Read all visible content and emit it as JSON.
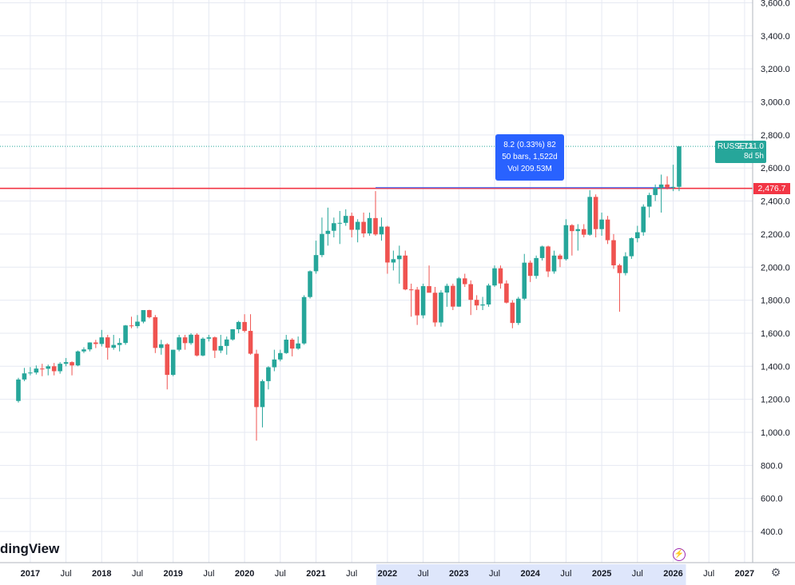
{
  "chart_data": {
    "type": "candlestick",
    "symbol": "RUSSELL",
    "last_price": "2,731.0",
    "bar_countdown": "8d 5h",
    "horizontal_level": "2,476.7",
    "measure": {
      "line1": "8.2 (0.33%) 82",
      "line2": "50 bars, 1,522d",
      "line3": "Vol 209.53M"
    },
    "y_ticks": [
      "400.0",
      "600.0",
      "800.0",
      "1,000.0",
      "1,200.0",
      "1,400.0",
      "1,600.0",
      "1,800.0",
      "2,000.0",
      "2,200.0",
      "2,400.0",
      "2,600.0",
      "2,800.0",
      "3,000.0",
      "3,200.0",
      "3,400.0",
      "3,600.0"
    ],
    "x_ticks": [
      "2017",
      "Jul",
      "2018",
      "Jul",
      "2019",
      "Jul",
      "2020",
      "Jul",
      "2021",
      "Jul",
      "2022",
      "Jul",
      "2023",
      "Jul",
      "2024",
      "Jul",
      "2025",
      "Jul",
      "2026",
      "Jul",
      "2027"
    ],
    "x_ticks_highlight": [
      "2022",
      "Jul",
      "2023",
      "Jul",
      "2024",
      "Jul",
      "2025",
      "Jul",
      "2026"
    ],
    "candles": [
      {
        "date": "2016-11",
        "o": 1190,
        "h": 1330,
        "l": 1180,
        "c": 1320
      },
      {
        "date": "2016-12",
        "o": 1320,
        "h": 1390,
        "l": 1310,
        "c": 1357
      },
      {
        "date": "2017-01",
        "o": 1357,
        "h": 1395,
        "l": 1345,
        "c": 1362
      },
      {
        "date": "2017-02",
        "o": 1362,
        "h": 1405,
        "l": 1350,
        "c": 1386
      },
      {
        "date": "2017-03",
        "o": 1386,
        "h": 1415,
        "l": 1340,
        "c": 1385
      },
      {
        "date": "2017-04",
        "o": 1385,
        "h": 1410,
        "l": 1345,
        "c": 1400
      },
      {
        "date": "2017-05",
        "o": 1400,
        "h": 1420,
        "l": 1345,
        "c": 1370
      },
      {
        "date": "2017-06",
        "o": 1370,
        "h": 1425,
        "l": 1355,
        "c": 1415
      },
      {
        "date": "2017-07",
        "o": 1415,
        "h": 1450,
        "l": 1400,
        "c": 1425
      },
      {
        "date": "2017-08",
        "o": 1425,
        "h": 1430,
        "l": 1345,
        "c": 1405
      },
      {
        "date": "2017-09",
        "o": 1405,
        "h": 1495,
        "l": 1400,
        "c": 1490
      },
      {
        "date": "2017-10",
        "o": 1490,
        "h": 1515,
        "l": 1480,
        "c": 1502
      },
      {
        "date": "2017-11",
        "o": 1502,
        "h": 1545,
        "l": 1490,
        "c": 1544
      },
      {
        "date": "2017-12",
        "o": 1544,
        "h": 1560,
        "l": 1510,
        "c": 1535
      },
      {
        "date": "2018-01",
        "o": 1535,
        "h": 1620,
        "l": 1520,
        "c": 1575
      },
      {
        "date": "2018-02",
        "o": 1575,
        "h": 1590,
        "l": 1440,
        "c": 1512
      },
      {
        "date": "2018-03",
        "o": 1512,
        "h": 1590,
        "l": 1500,
        "c": 1529
      },
      {
        "date": "2018-04",
        "o": 1529,
        "h": 1570,
        "l": 1490,
        "c": 1541
      },
      {
        "date": "2018-05",
        "o": 1541,
        "h": 1650,
        "l": 1530,
        "c": 1647
      },
      {
        "date": "2018-06",
        "o": 1647,
        "h": 1700,
        "l": 1630,
        "c": 1643
      },
      {
        "date": "2018-07",
        "o": 1643,
        "h": 1710,
        "l": 1630,
        "c": 1670
      },
      {
        "date": "2018-08",
        "o": 1670,
        "h": 1740,
        "l": 1660,
        "c": 1740
      },
      {
        "date": "2018-09",
        "o": 1740,
        "h": 1742,
        "l": 1690,
        "c": 1697
      },
      {
        "date": "2018-10",
        "o": 1697,
        "h": 1710,
        "l": 1480,
        "c": 1511
      },
      {
        "date": "2018-11",
        "o": 1511,
        "h": 1560,
        "l": 1470,
        "c": 1533
      },
      {
        "date": "2018-12",
        "o": 1533,
        "h": 1540,
        "l": 1260,
        "c": 1348
      },
      {
        "date": "2019-01",
        "o": 1348,
        "h": 1500,
        "l": 1340,
        "c": 1500
      },
      {
        "date": "2019-02",
        "o": 1500,
        "h": 1590,
        "l": 1490,
        "c": 1575
      },
      {
        "date": "2019-03",
        "o": 1575,
        "h": 1590,
        "l": 1500,
        "c": 1540
      },
      {
        "date": "2019-04",
        "o": 1540,
        "h": 1600,
        "l": 1530,
        "c": 1591
      },
      {
        "date": "2019-05",
        "o": 1591,
        "h": 1600,
        "l": 1460,
        "c": 1465
      },
      {
        "date": "2019-06",
        "o": 1465,
        "h": 1575,
        "l": 1460,
        "c": 1567
      },
      {
        "date": "2019-07",
        "o": 1567,
        "h": 1590,
        "l": 1550,
        "c": 1575
      },
      {
        "date": "2019-08",
        "o": 1575,
        "h": 1580,
        "l": 1450,
        "c": 1495
      },
      {
        "date": "2019-09",
        "o": 1495,
        "h": 1590,
        "l": 1480,
        "c": 1523
      },
      {
        "date": "2019-10",
        "o": 1523,
        "h": 1580,
        "l": 1470,
        "c": 1562
      },
      {
        "date": "2019-11",
        "o": 1562,
        "h": 1625,
        "l": 1555,
        "c": 1624
      },
      {
        "date": "2019-12",
        "o": 1624,
        "h": 1675,
        "l": 1600,
        "c": 1668
      },
      {
        "date": "2020-01",
        "o": 1668,
        "h": 1715,
        "l": 1605,
        "c": 1614
      },
      {
        "date": "2020-02",
        "o": 1614,
        "h": 1715,
        "l": 1470,
        "c": 1476
      },
      {
        "date": "2020-03",
        "o": 1476,
        "h": 1500,
        "l": 950,
        "c": 1153
      },
      {
        "date": "2020-04",
        "o": 1153,
        "h": 1320,
        "l": 1030,
        "c": 1310
      },
      {
        "date": "2020-05",
        "o": 1310,
        "h": 1400,
        "l": 1260,
        "c": 1394
      },
      {
        "date": "2020-06",
        "o": 1394,
        "h": 1500,
        "l": 1370,
        "c": 1441
      },
      {
        "date": "2020-07",
        "o": 1441,
        "h": 1500,
        "l": 1430,
        "c": 1480
      },
      {
        "date": "2020-08",
        "o": 1480,
        "h": 1590,
        "l": 1475,
        "c": 1561
      },
      {
        "date": "2020-09",
        "o": 1561,
        "h": 1570,
        "l": 1460,
        "c": 1507
      },
      {
        "date": "2020-10",
        "o": 1507,
        "h": 1580,
        "l": 1500,
        "c": 1538
      },
      {
        "date": "2020-11",
        "o": 1538,
        "h": 1830,
        "l": 1530,
        "c": 1819
      },
      {
        "date": "2020-12",
        "o": 1819,
        "h": 1980,
        "l": 1810,
        "c": 1975
      },
      {
        "date": "2021-01",
        "o": 1975,
        "h": 2160,
        "l": 1960,
        "c": 2073
      },
      {
        "date": "2021-02",
        "o": 2073,
        "h": 2300,
        "l": 2060,
        "c": 2201
      },
      {
        "date": "2021-03",
        "o": 2201,
        "h": 2360,
        "l": 2130,
        "c": 2220
      },
      {
        "date": "2021-04",
        "o": 2220,
        "h": 2300,
        "l": 2180,
        "c": 2266
      },
      {
        "date": "2021-05",
        "o": 2266,
        "h": 2340,
        "l": 2140,
        "c": 2268
      },
      {
        "date": "2021-06",
        "o": 2268,
        "h": 2350,
        "l": 2250,
        "c": 2310
      },
      {
        "date": "2021-07",
        "o": 2310,
        "h": 2330,
        "l": 2180,
        "c": 2226
      },
      {
        "date": "2021-08",
        "o": 2226,
        "h": 2290,
        "l": 2150,
        "c": 2274
      },
      {
        "date": "2021-09",
        "o": 2274,
        "h": 2330,
        "l": 2180,
        "c": 2204
      },
      {
        "date": "2021-10",
        "o": 2204,
        "h": 2330,
        "l": 2190,
        "c": 2297
      },
      {
        "date": "2021-11",
        "o": 2297,
        "h": 2460,
        "l": 2190,
        "c": 2198
      },
      {
        "date": "2021-12",
        "o": 2198,
        "h": 2300,
        "l": 2160,
        "c": 2245
      },
      {
        "date": "2022-01",
        "o": 2245,
        "h": 2250,
        "l": 1960,
        "c": 2028
      },
      {
        "date": "2022-02",
        "o": 2028,
        "h": 2100,
        "l": 1980,
        "c": 2048
      },
      {
        "date": "2022-03",
        "o": 2048,
        "h": 2130,
        "l": 1900,
        "c": 2070
      },
      {
        "date": "2022-04",
        "o": 2070,
        "h": 2100,
        "l": 1860,
        "c": 1865
      },
      {
        "date": "2022-05",
        "o": 1865,
        "h": 1900,
        "l": 1700,
        "c": 1864
      },
      {
        "date": "2022-06",
        "o": 1864,
        "h": 1880,
        "l": 1650,
        "c": 1708
      },
      {
        "date": "2022-07",
        "o": 1708,
        "h": 1900,
        "l": 1690,
        "c": 1885
      },
      {
        "date": "2022-08",
        "o": 1885,
        "h": 2010,
        "l": 1850,
        "c": 1845
      },
      {
        "date": "2022-09",
        "o": 1845,
        "h": 1880,
        "l": 1640,
        "c": 1665
      },
      {
        "date": "2022-10",
        "o": 1665,
        "h": 1860,
        "l": 1640,
        "c": 1846
      },
      {
        "date": "2022-11",
        "o": 1846,
        "h": 1900,
        "l": 1760,
        "c": 1887
      },
      {
        "date": "2022-12",
        "o": 1887,
        "h": 1900,
        "l": 1740,
        "c": 1761
      },
      {
        "date": "2023-01",
        "o": 1761,
        "h": 1940,
        "l": 1760,
        "c": 1932
      },
      {
        "date": "2023-02",
        "o": 1932,
        "h": 1960,
        "l": 1880,
        "c": 1897
      },
      {
        "date": "2023-03",
        "o": 1897,
        "h": 1920,
        "l": 1710,
        "c": 1802
      },
      {
        "date": "2023-04",
        "o": 1802,
        "h": 1830,
        "l": 1740,
        "c": 1768
      },
      {
        "date": "2023-05",
        "o": 1768,
        "h": 1820,
        "l": 1740,
        "c": 1774
      },
      {
        "date": "2023-06",
        "o": 1774,
        "h": 1900,
        "l": 1760,
        "c": 1889
      },
      {
        "date": "2023-07",
        "o": 1889,
        "h": 2010,
        "l": 1880,
        "c": 1993
      },
      {
        "date": "2023-08",
        "o": 1993,
        "h": 2010,
        "l": 1870,
        "c": 1901
      },
      {
        "date": "2023-09",
        "o": 1901,
        "h": 1920,
        "l": 1780,
        "c": 1785
      },
      {
        "date": "2023-10",
        "o": 1785,
        "h": 1800,
        "l": 1630,
        "c": 1662
      },
      {
        "date": "2023-11",
        "o": 1662,
        "h": 1820,
        "l": 1650,
        "c": 1809
      },
      {
        "date": "2023-12",
        "o": 1809,
        "h": 2080,
        "l": 1800,
        "c": 2027
      },
      {
        "date": "2024-01",
        "o": 2027,
        "h": 2040,
        "l": 1910,
        "c": 1947
      },
      {
        "date": "2024-02",
        "o": 1947,
        "h": 2070,
        "l": 1930,
        "c": 2055
      },
      {
        "date": "2024-03",
        "o": 2055,
        "h": 2130,
        "l": 2040,
        "c": 2125
      },
      {
        "date": "2024-04",
        "o": 2125,
        "h": 2130,
        "l": 1940,
        "c": 1974
      },
      {
        "date": "2024-05",
        "o": 1974,
        "h": 2100,
        "l": 1960,
        "c": 2070
      },
      {
        "date": "2024-06",
        "o": 2070,
        "h": 2080,
        "l": 2000,
        "c": 2048
      },
      {
        "date": "2024-07",
        "o": 2048,
        "h": 2290,
        "l": 2040,
        "c": 2254
      },
      {
        "date": "2024-08",
        "o": 2254,
        "h": 2260,
        "l": 2070,
        "c": 2218
      },
      {
        "date": "2024-09",
        "o": 2218,
        "h": 2260,
        "l": 2100,
        "c": 2230
      },
      {
        "date": "2024-10",
        "o": 2230,
        "h": 2260,
        "l": 2180,
        "c": 2196
      },
      {
        "date": "2024-11",
        "o": 2196,
        "h": 2466,
        "l": 2190,
        "c": 2425
      },
      {
        "date": "2024-12",
        "o": 2425,
        "h": 2440,
        "l": 2180,
        "c": 2230
      },
      {
        "date": "2025-01",
        "o": 2230,
        "h": 2330,
        "l": 2190,
        "c": 2288
      },
      {
        "date": "2025-02",
        "o": 2288,
        "h": 2310,
        "l": 2140,
        "c": 2163
      },
      {
        "date": "2025-03",
        "o": 2163,
        "h": 2200,
        "l": 1990,
        "c": 2011
      },
      {
        "date": "2025-04",
        "o": 2011,
        "h": 2020,
        "l": 1730,
        "c": 1964
      },
      {
        "date": "2025-05",
        "o": 1964,
        "h": 2090,
        "l": 1950,
        "c": 2066
      },
      {
        "date": "2025-06",
        "o": 2066,
        "h": 2180,
        "l": 2050,
        "c": 2175
      },
      {
        "date": "2025-07",
        "o": 2175,
        "h": 2250,
        "l": 2150,
        "c": 2211
      },
      {
        "date": "2025-08",
        "o": 2211,
        "h": 2380,
        "l": 2190,
        "c": 2366
      },
      {
        "date": "2025-09",
        "o": 2366,
        "h": 2450,
        "l": 2300,
        "c": 2436
      },
      {
        "date": "2025-10",
        "o": 2436,
        "h": 2500,
        "l": 2400,
        "c": 2479
      },
      {
        "date": "2025-11",
        "o": 2479,
        "h": 2560,
        "l": 2330,
        "c": 2500
      },
      {
        "date": "2025-12",
        "o": 2500,
        "h": 2550,
        "l": 2470,
        "c": 2481
      },
      {
        "date": "2026-01",
        "o": 2481,
        "h": 2620,
        "l": 2460,
        "c": 2486
      },
      {
        "date": "2026-02",
        "o": 2486,
        "h": 2731,
        "l": 2460,
        "c": 2731
      }
    ]
  },
  "watermark": "dingView",
  "icons": {
    "bolt": "lightning-bolt-icon",
    "settings": "gear-icon"
  },
  "colors": {
    "up": "#26a69a",
    "down": "#ef5350",
    "level": "#f23645",
    "measure": "#2962ff",
    "highlight": "#dee6fb",
    "event": "#9c27b0"
  }
}
